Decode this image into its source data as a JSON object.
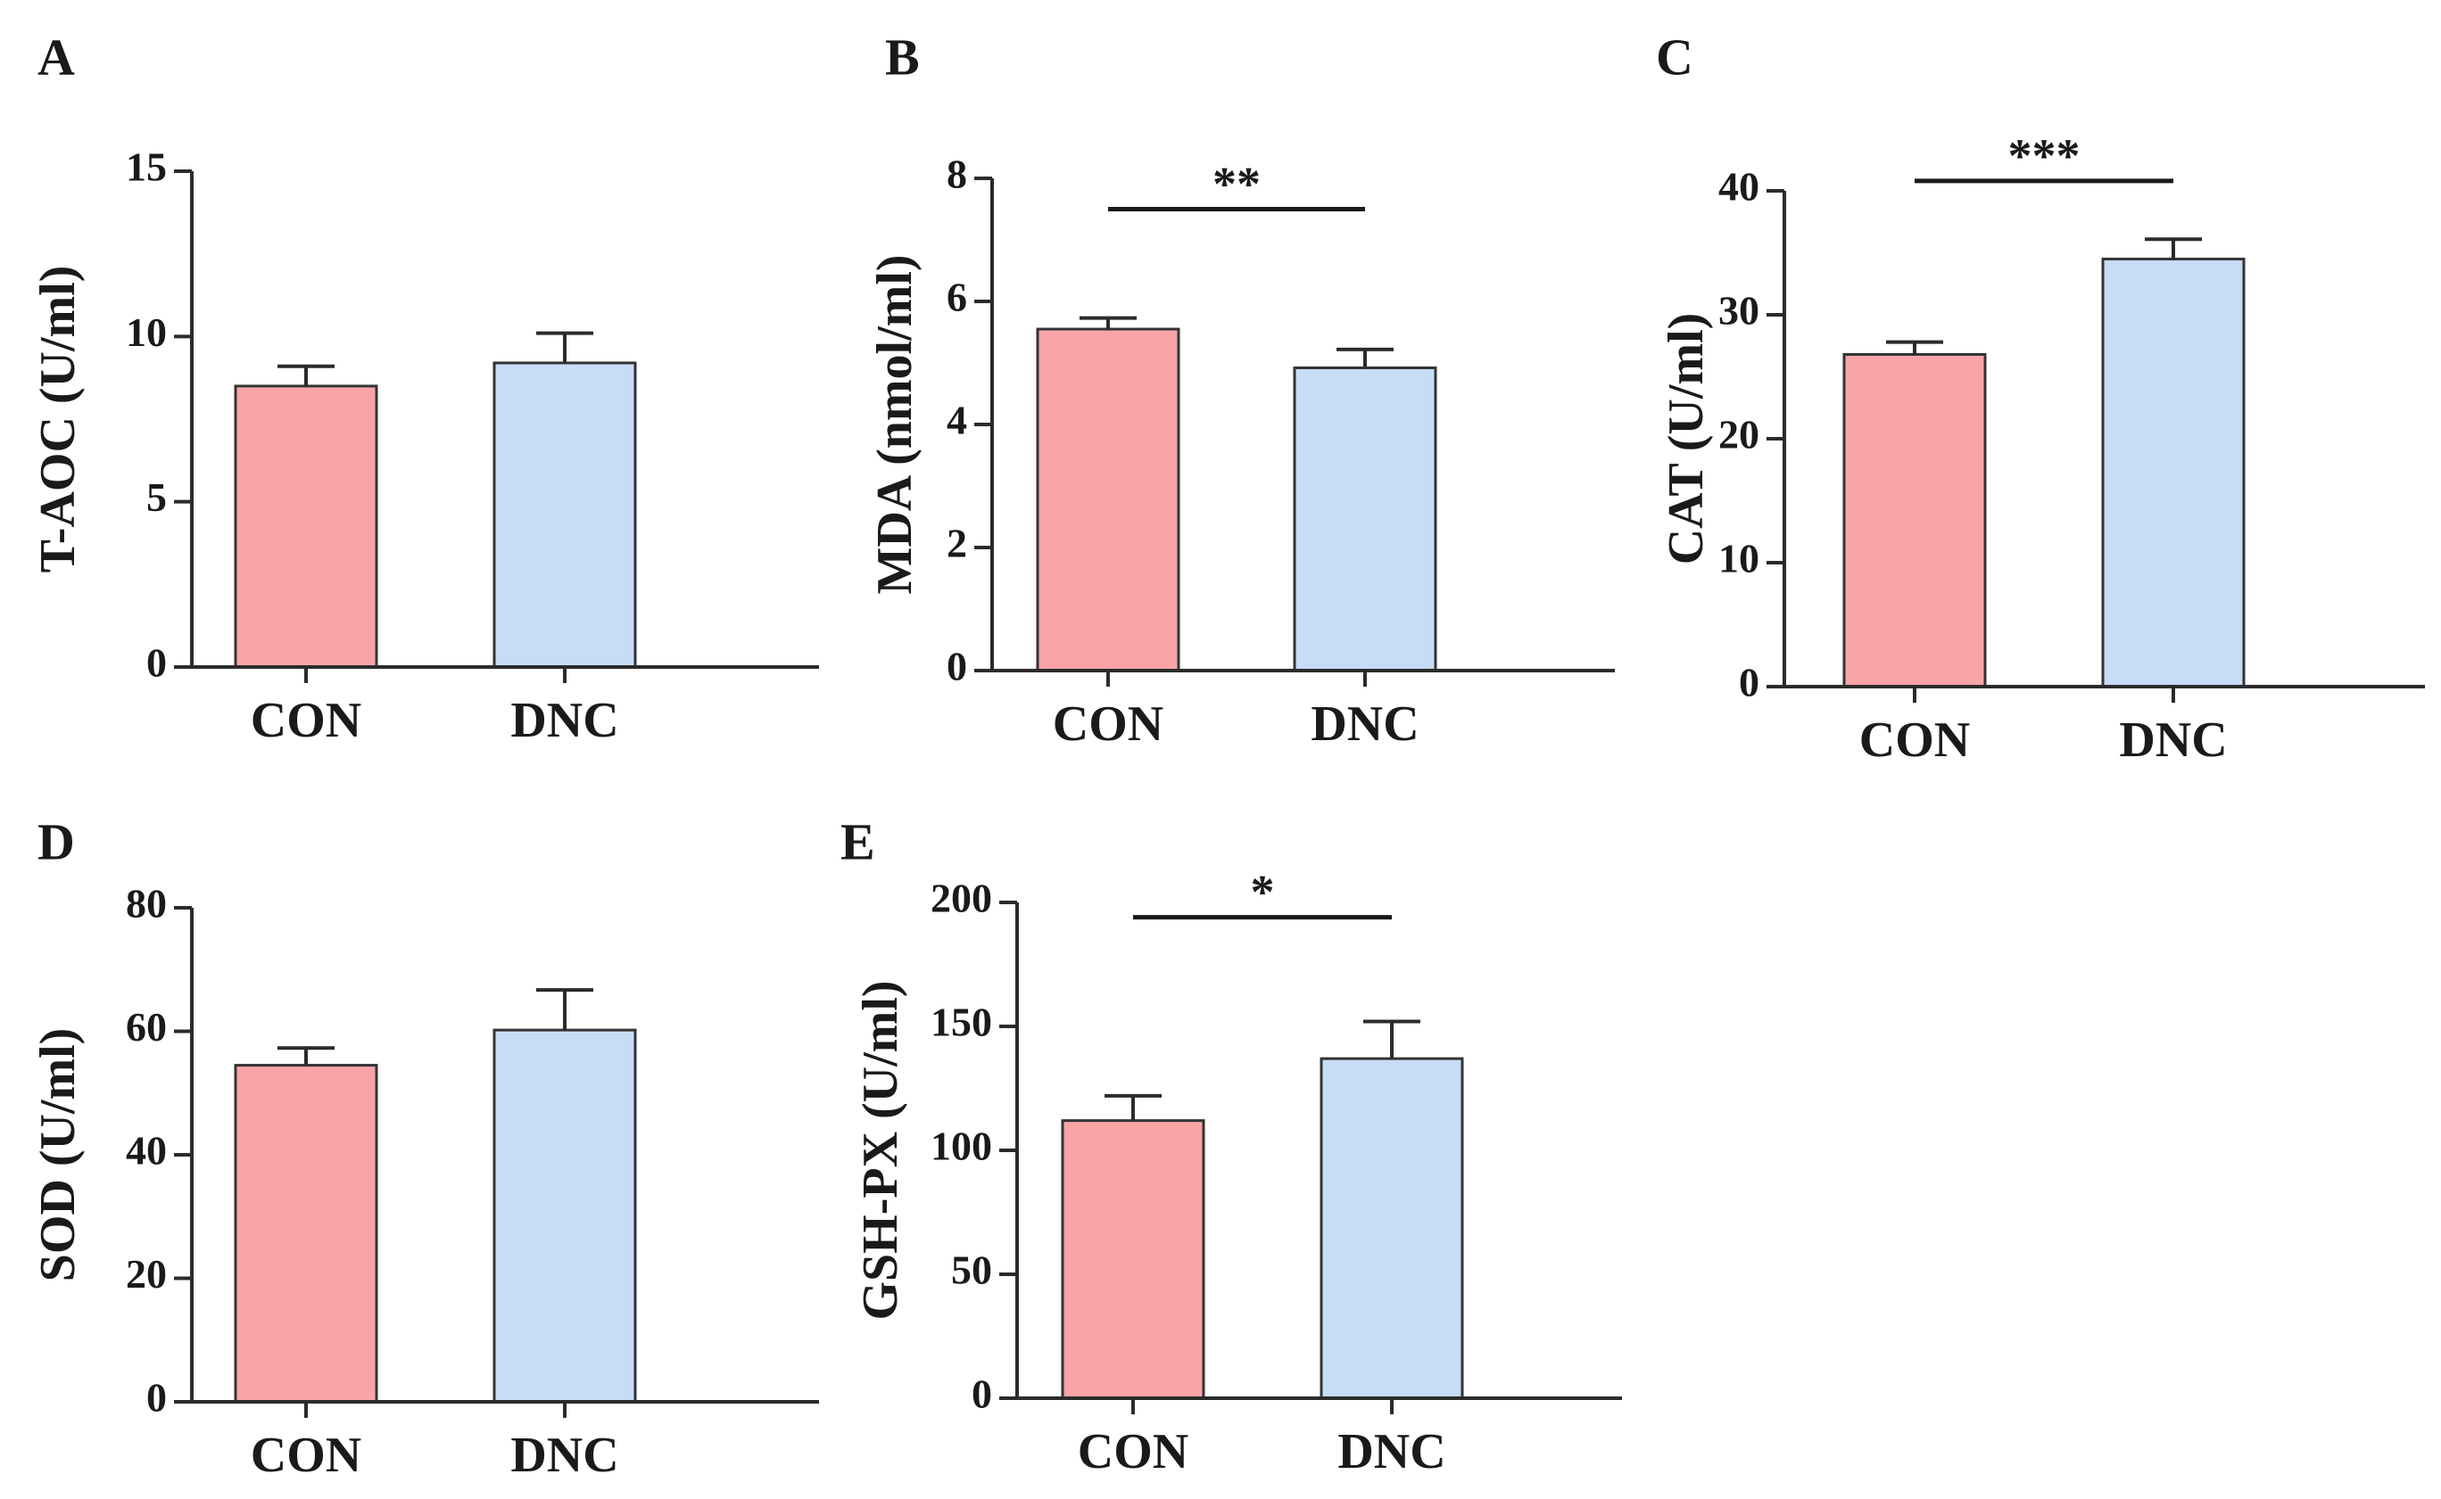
{
  "colors": {
    "CON": "#f9a5a8",
    "DNC": "#c7dcf5",
    "axis": "#2b2b2b"
  },
  "chart_data": [
    {
      "panel": "A",
      "type": "bar",
      "ylabel": "T-AOC (U/ml)",
      "categories": [
        "CON",
        "DNC"
      ],
      "values": [
        8.5,
        9.2
      ],
      "errors": [
        0.6,
        0.9
      ],
      "ylim": [
        0,
        15
      ],
      "yticks": [
        0,
        5,
        10,
        15
      ],
      "significance": null
    },
    {
      "panel": "B",
      "type": "bar",
      "ylabel": "MDA (nmol/ml)",
      "categories": [
        "CON",
        "DNC"
      ],
      "values": [
        5.55,
        4.92
      ],
      "errors": [
        0.18,
        0.3
      ],
      "ylim": [
        0,
        8
      ],
      "yticks": [
        0,
        2,
        4,
        6,
        8
      ],
      "significance": {
        "label": "**",
        "at": 7.5
      }
    },
    {
      "panel": "C",
      "type": "bar",
      "ylabel": "CAT (U/ml)",
      "categories": [
        "CON",
        "DNC"
      ],
      "values": [
        26.8,
        34.5
      ],
      "errors": [
        1.0,
        1.6
      ],
      "ylim": [
        0,
        40
      ],
      "yticks": [
        0,
        10,
        20,
        30,
        40
      ],
      "significance": {
        "label": "***",
        "at": 40.8
      }
    },
    {
      "panel": "D",
      "type": "bar",
      "ylabel": "SOD (U/ml)",
      "categories": [
        "CON",
        "DNC"
      ],
      "values": [
        54.5,
        60.2
      ],
      "errors": [
        2.8,
        6.5
      ],
      "ylim": [
        0,
        80
      ],
      "yticks": [
        0,
        20,
        40,
        60,
        80
      ],
      "significance": null
    },
    {
      "panel": "E",
      "type": "bar",
      "ylabel": "GSH-PX (U/ml)",
      "categories": [
        "CON",
        "DNC"
      ],
      "values": [
        112,
        137
      ],
      "errors": [
        10,
        15
      ],
      "ylim": [
        0,
        200
      ],
      "yticks": [
        0,
        50,
        100,
        150,
        200
      ],
      "significance": {
        "label": "*",
        "at": 194
      }
    }
  ]
}
